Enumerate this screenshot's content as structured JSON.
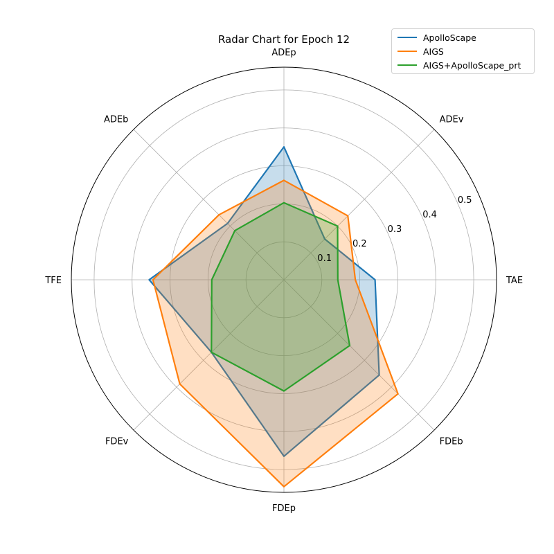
{
  "chart_data": {
    "type": "radar",
    "title": "Radar Chart for Epoch 12",
    "axes": [
      "TAE",
      "ADEv",
      "ADEp",
      "ADEb",
      "TFE",
      "FDEv",
      "FDEp",
      "FDEb"
    ],
    "r_ticks": [
      "0.1",
      "0.2",
      "0.3",
      "0.4",
      "0.5"
    ],
    "r_max": 0.56,
    "grid": true,
    "legend_position": "top-right",
    "series": [
      {
        "name": "ApolloScape",
        "color": "#1f77b4",
        "values": [
          0.24,
          0.152,
          0.35,
          0.21,
          0.355,
          0.27,
          0.465,
          0.355
        ]
      },
      {
        "name": "AIGS",
        "color": "#ff7f0e",
        "values": [
          0.188,
          0.238,
          0.262,
          0.242,
          0.345,
          0.388,
          0.545,
          0.425
        ]
      },
      {
        "name": "AIGS+ApolloScape_prt",
        "color": "#2ca02c",
        "values": [
          0.142,
          0.2,
          0.203,
          0.183,
          0.19,
          0.27,
          0.293,
          0.245
        ]
      }
    ]
  }
}
